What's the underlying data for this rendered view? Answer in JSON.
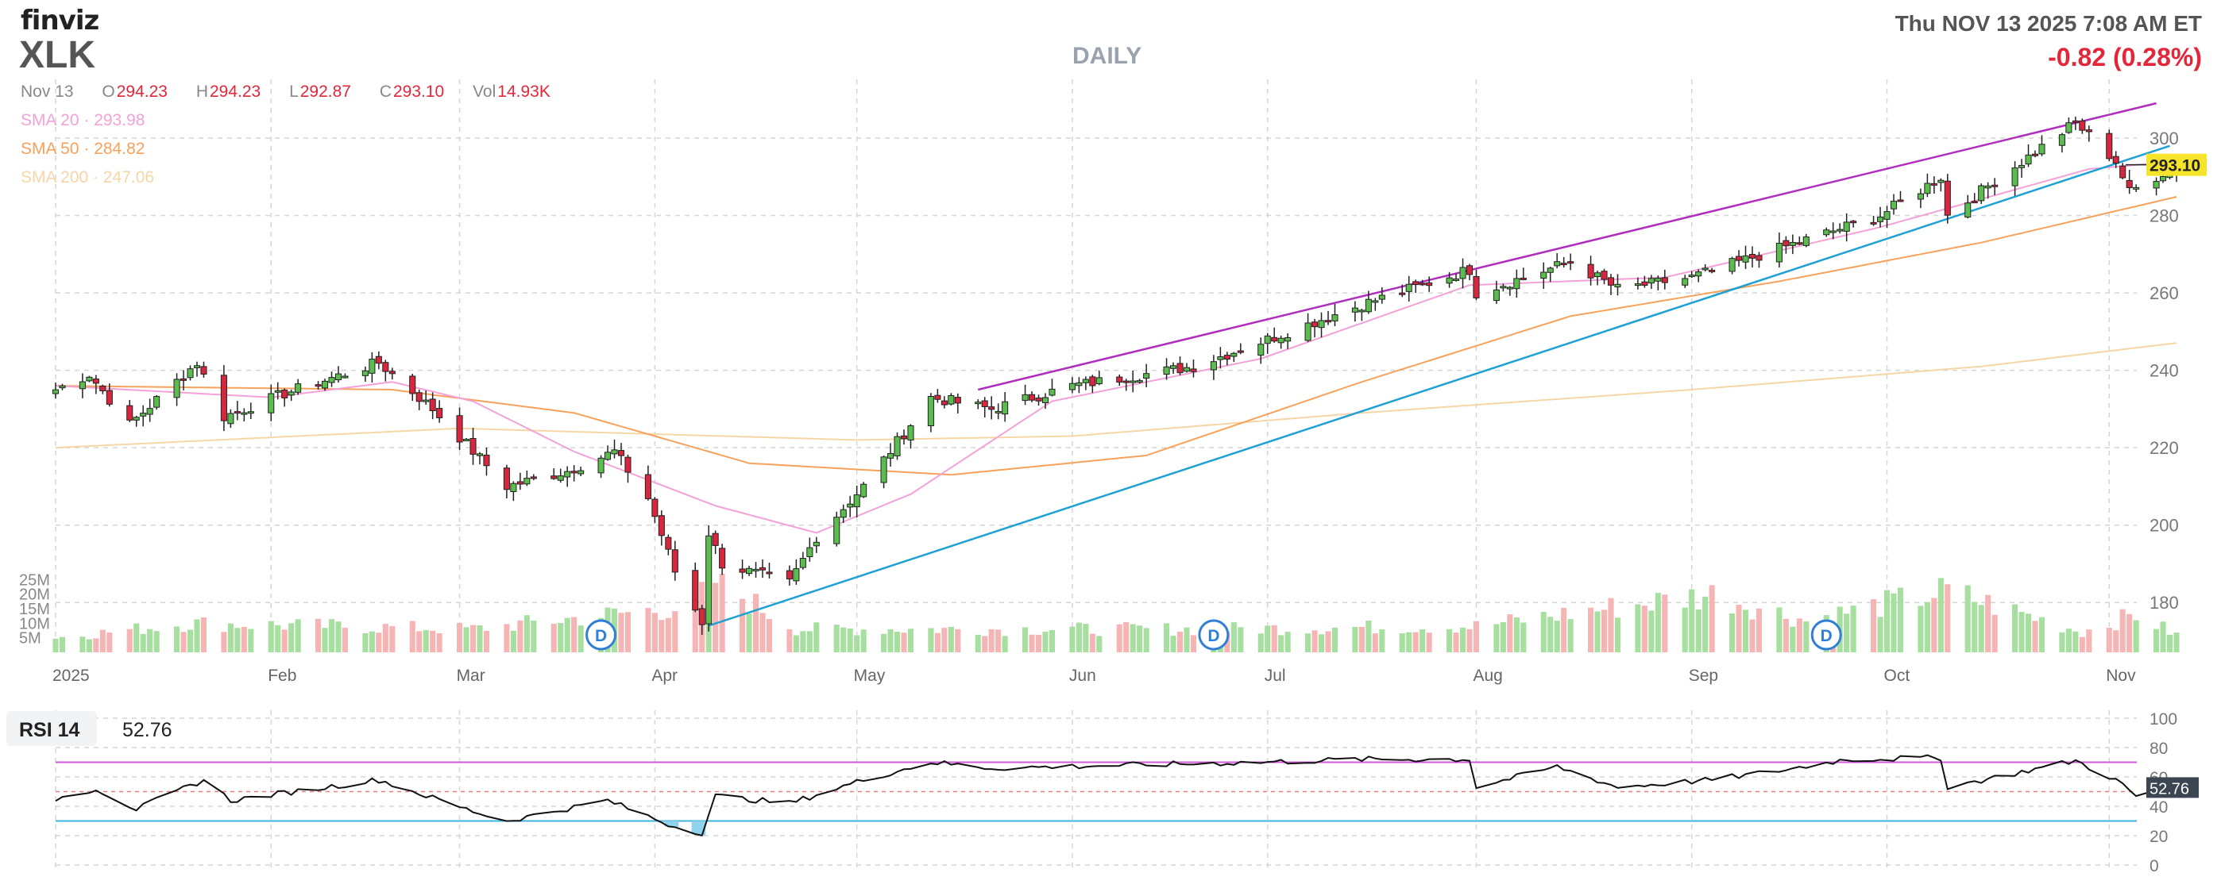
{
  "header": {
    "logo": "finviz",
    "ticker": "XLK",
    "timeframe": "DAILY",
    "datetime": "Thu NOV 13 2025 7:08 AM ET",
    "change": "-0.82 (0.28%)"
  },
  "ohlc": {
    "date": "Nov 13",
    "open_label": "O",
    "open": "294.23",
    "high_label": "H",
    "high": "294.23",
    "low_label": "L",
    "low": "292.87",
    "close_label": "C",
    "close": "293.10",
    "vol_label": "Vol",
    "vol": "14.93K"
  },
  "sma": {
    "sma20": "SMA 20 · 293.98",
    "sma50": "SMA 50 · 284.82",
    "sma200": "SMA 200 · 247.06"
  },
  "rsi": {
    "label": "RSI 14",
    "value": "52.76"
  },
  "colors": {
    "up": "#5bbd4e",
    "down": "#d7263d",
    "sma20": "#f3a2d8",
    "sma50": "#f7a25b",
    "sma200": "#f6d6a6",
    "upper_trend": "#b02ebd",
    "lower_trend": "#1fa1d3",
    "vol_up": "#a6dfa0",
    "vol_down": "#f6b5b5",
    "rsi_line": "#111111",
    "rsi_band_hi": "#d05ad8",
    "rsi_band_lo": "#3fb3dc",
    "dividend": "#2f7fd6"
  },
  "chart_data": {
    "type": "candlestick",
    "price_axis": {
      "ticks": [
        180,
        200,
        220,
        240,
        260,
        280,
        300
      ],
      "range": [
        170,
        308
      ]
    },
    "volume_axis": {
      "ticks": [
        "25M",
        "20M",
        "15M",
        "10M",
        "5M"
      ],
      "range_millions": [
        0,
        30
      ]
    },
    "x_labels": [
      {
        "label": "2025",
        "date": "2025-01-02"
      },
      {
        "label": "Feb",
        "date": "2025-02-03"
      },
      {
        "label": "Mar",
        "date": "2025-03-03"
      },
      {
        "label": "Apr",
        "date": "2025-04-01"
      },
      {
        "label": "May",
        "date": "2025-05-01"
      },
      {
        "label": "Jun",
        "date": "2025-06-02"
      },
      {
        "label": "Jul",
        "date": "2025-07-01"
      },
      {
        "label": "Aug",
        "date": "2025-08-01"
      },
      {
        "label": "Sep",
        "date": "2025-09-02"
      },
      {
        "label": "Oct",
        "date": "2025-10-01"
      },
      {
        "label": "Nov",
        "date": "2025-11-03"
      }
    ],
    "date_range": [
      "2025-01-02",
      "2025-11-13"
    ],
    "last_price": "293.10",
    "price_keypoints": [
      [
        "2025-01-02",
        235
      ],
      [
        "2025-01-07",
        239
      ],
      [
        "2025-01-13",
        226
      ],
      [
        "2025-01-23",
        242
      ],
      [
        "2025-01-27",
        228
      ],
      [
        "2025-02-05",
        234
      ],
      [
        "2025-02-19",
        242
      ],
      [
        "2025-02-27",
        230
      ],
      [
        "2025-03-10",
        210
      ],
      [
        "2025-03-19",
        214
      ],
      [
        "2025-03-26",
        219
      ],
      [
        "2025-03-31",
        207
      ],
      [
        "2025-04-04",
        188
      ],
      [
        "2025-04-08",
        175
      ],
      [
        "2025-04-09",
        198
      ],
      [
        "2025-04-11",
        190
      ],
      [
        "2025-04-21",
        185
      ],
      [
        "2025-04-25",
        197
      ],
      [
        "2025-05-02",
        210
      ],
      [
        "2025-05-12",
        233
      ],
      [
        "2025-05-21",
        230
      ],
      [
        "2025-06-02",
        236
      ],
      [
        "2025-06-20",
        241
      ],
      [
        "2025-07-01",
        248
      ],
      [
        "2025-07-15",
        257
      ],
      [
        "2025-07-31",
        266
      ],
      [
        "2025-08-01",
        260
      ],
      [
        "2025-08-15",
        268
      ],
      [
        "2025-08-22",
        261
      ],
      [
        "2025-09-02",
        264
      ],
      [
        "2025-09-16",
        272
      ],
      [
        "2025-09-30",
        280
      ],
      [
        "2025-10-09",
        290
      ],
      [
        "2025-10-10",
        280
      ],
      [
        "2025-10-29",
        304
      ],
      [
        "2025-11-04",
        294
      ],
      [
        "2025-11-06",
        286
      ],
      [
        "2025-11-13",
        293.1
      ]
    ],
    "sma20_keypoints": [
      [
        "2025-01-02",
        236
      ],
      [
        "2025-02-03",
        233
      ],
      [
        "2025-02-21",
        237
      ],
      [
        "2025-03-05",
        232
      ],
      [
        "2025-03-20",
        219
      ],
      [
        "2025-04-10",
        205
      ],
      [
        "2025-04-25",
        198
      ],
      [
        "2025-05-09",
        208
      ],
      [
        "2025-05-30",
        232
      ],
      [
        "2025-06-30",
        243
      ],
      [
        "2025-07-31",
        262
      ],
      [
        "2025-08-29",
        264
      ],
      [
        "2025-09-30",
        277
      ],
      [
        "2025-10-31",
        292
      ],
      [
        "2025-11-13",
        293.98
      ]
    ],
    "sma50_keypoints": [
      [
        "2025-01-02",
        236
      ],
      [
        "2025-02-21",
        235
      ],
      [
        "2025-03-20",
        229
      ],
      [
        "2025-04-15",
        216
      ],
      [
        "2025-05-15",
        213
      ],
      [
        "2025-06-13",
        218
      ],
      [
        "2025-07-15",
        237
      ],
      [
        "2025-08-15",
        254
      ],
      [
        "2025-09-15",
        263
      ],
      [
        "2025-10-15",
        273
      ],
      [
        "2025-11-13",
        284.82
      ]
    ],
    "sma200_keypoints": [
      [
        "2025-01-02",
        220
      ],
      [
        "2025-03-03",
        225
      ],
      [
        "2025-05-01",
        222
      ],
      [
        "2025-06-02",
        223
      ],
      [
        "2025-07-15",
        229
      ],
      [
        "2025-09-02",
        235
      ],
      [
        "2025-10-15",
        241
      ],
      [
        "2025-11-13",
        247.06
      ]
    ],
    "upper_trendline": [
      [
        "2025-05-19",
        235
      ],
      [
        "2025-11-10",
        309
      ]
    ],
    "lower_trendline": [
      [
        "2025-04-09",
        174
      ],
      [
        "2025-11-12",
        298
      ]
    ],
    "volume_keypoints_millions": [
      [
        "2025-01-02",
        5
      ],
      [
        "2025-01-22",
        10
      ],
      [
        "2025-03-05",
        8
      ],
      [
        "2025-03-13",
        10
      ],
      [
        "2025-04-07",
        16
      ],
      [
        "2025-04-09",
        26
      ],
      [
        "2025-04-22",
        8
      ],
      [
        "2025-06-20",
        8
      ],
      [
        "2025-08-01",
        9
      ],
      [
        "2025-09-05",
        20
      ],
      [
        "2025-09-19",
        11
      ],
      [
        "2025-10-10",
        21
      ],
      [
        "2025-10-30",
        7
      ],
      [
        "2025-11-07",
        13
      ],
      [
        "2025-11-13",
        6
      ]
    ],
    "dividend_markers": [
      {
        "label": "D",
        "date": "2025-03-24"
      },
      {
        "label": "D",
        "date": "2025-06-23"
      },
      {
        "label": "D",
        "date": "2025-09-22"
      }
    ],
    "rsi": {
      "axis_ticks": [
        0,
        20,
        40,
        60,
        80,
        100
      ],
      "overbought": 70,
      "oversold": 30,
      "last": 52.76,
      "keypoints": [
        [
          "2025-01-02",
          45
        ],
        [
          "2025-01-08",
          52
        ],
        [
          "2025-01-14",
          38
        ],
        [
          "2025-01-24",
          58
        ],
        [
          "2025-01-28",
          44
        ],
        [
          "2025-02-19",
          58
        ],
        [
          "2025-03-04",
          38
        ],
        [
          "2025-03-10",
          30
        ],
        [
          "2025-03-25",
          44
        ],
        [
          "2025-04-04",
          26
        ],
        [
          "2025-04-08",
          22
        ],
        [
          "2025-04-10",
          47
        ],
        [
          "2025-04-21",
          42
        ],
        [
          "2025-05-02",
          58
        ],
        [
          "2025-05-12",
          70
        ],
        [
          "2025-05-21",
          66
        ],
        [
          "2025-06-10",
          68
        ],
        [
          "2025-06-30",
          70
        ],
        [
          "2025-07-15",
          72
        ],
        [
          "2025-07-31",
          72
        ],
        [
          "2025-08-01",
          53
        ],
        [
          "2025-08-13",
          67
        ],
        [
          "2025-08-22",
          53
        ],
        [
          "2025-09-05",
          58
        ],
        [
          "2025-09-16",
          65
        ],
        [
          "2025-09-25",
          72
        ],
        [
          "2025-10-09",
          73
        ],
        [
          "2025-10-10",
          53
        ],
        [
          "2025-10-29",
          71
        ],
        [
          "2025-11-04",
          58
        ],
        [
          "2025-11-07",
          47
        ],
        [
          "2025-11-13",
          52.76
        ]
      ]
    }
  }
}
